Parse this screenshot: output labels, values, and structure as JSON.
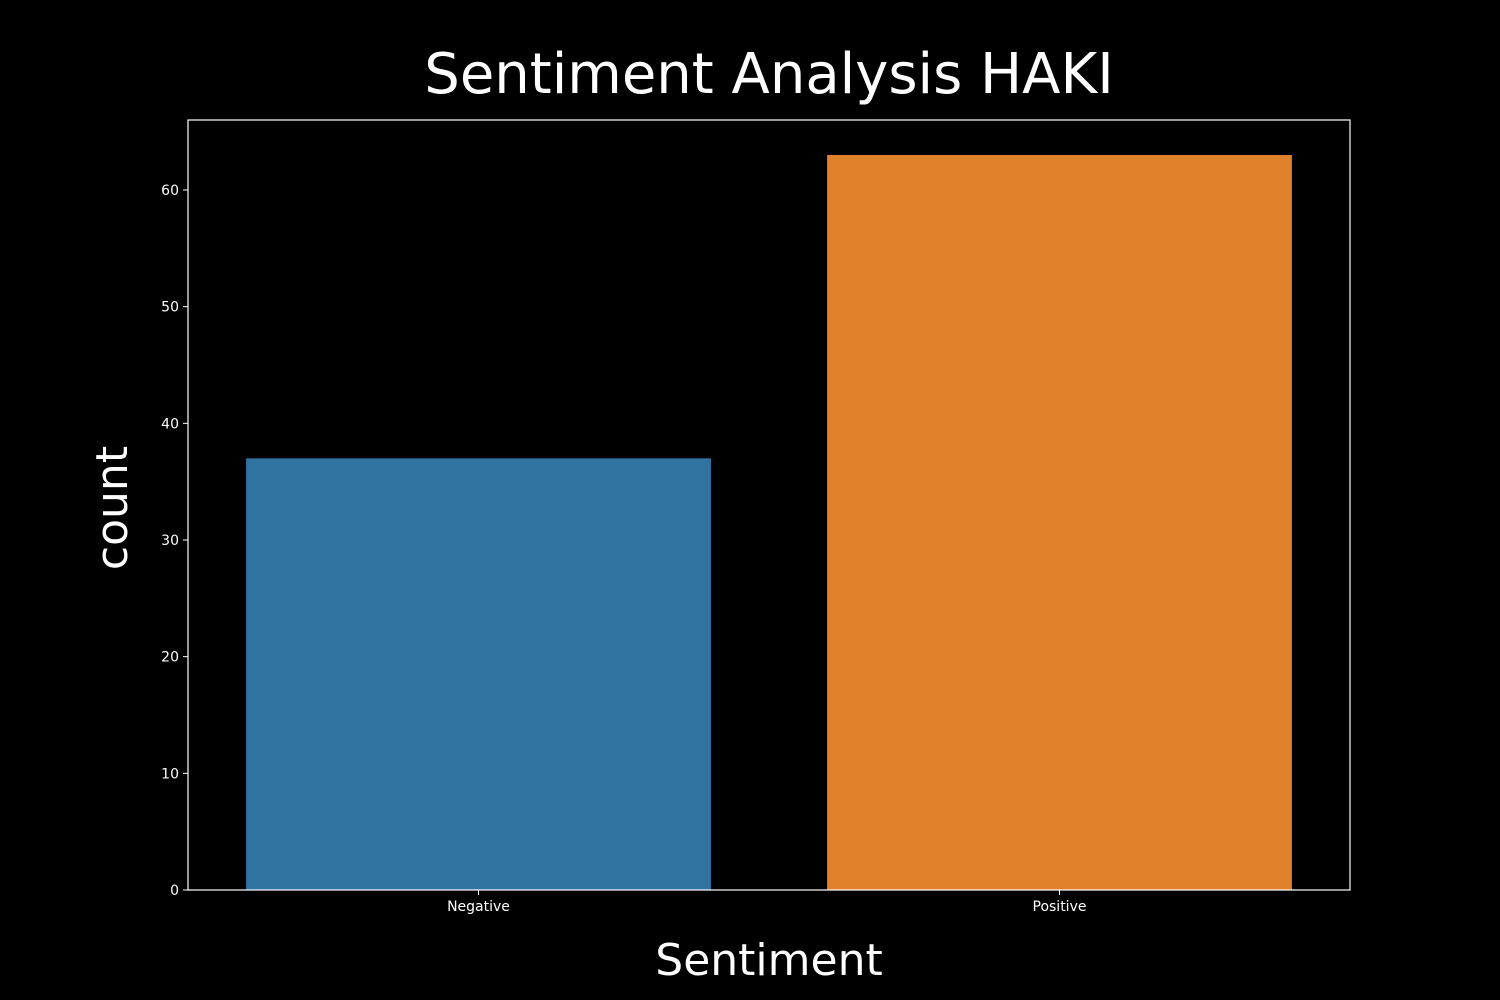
{
  "chart_data": {
    "type": "bar",
    "title": "Sentiment Analysis HAKI",
    "xlabel": "Sentiment",
    "ylabel": "count",
    "categories": [
      "Negative",
      "Positive"
    ],
    "values": [
      37,
      63
    ],
    "ylim": [
      0,
      66
    ],
    "yticks": [
      0,
      10,
      20,
      30,
      40,
      50,
      60
    ],
    "bar_colors": [
      "#3274a1",
      "#e1812c"
    ],
    "background_color": "#000000",
    "foreground_color": "#ffffff",
    "grid": false,
    "legend": "none"
  }
}
